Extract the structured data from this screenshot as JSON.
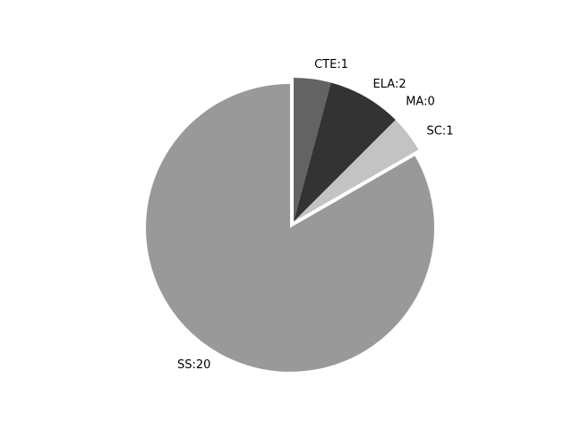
{
  "chart_data": {
    "type": "pie",
    "start": "top",
    "direction": "clockwise",
    "slices": [
      {
        "name": "CTE",
        "label": "CTE:1",
        "value": 1,
        "color": "#636363",
        "exploded": false
      },
      {
        "name": "ELA",
        "label": "ELA:2",
        "value": 2,
        "color": "#333333",
        "exploded": false
      },
      {
        "name": "MA",
        "label": "MA:0",
        "value": 0,
        "color": "#999999",
        "exploded": false
      },
      {
        "name": "SC",
        "label": "SC:1",
        "value": 1,
        "color": "#c3c3c3",
        "exploded": false
      },
      {
        "name": "SS",
        "label": "SS:20",
        "value": 20,
        "color": "#999999",
        "exploded": true
      }
    ]
  }
}
